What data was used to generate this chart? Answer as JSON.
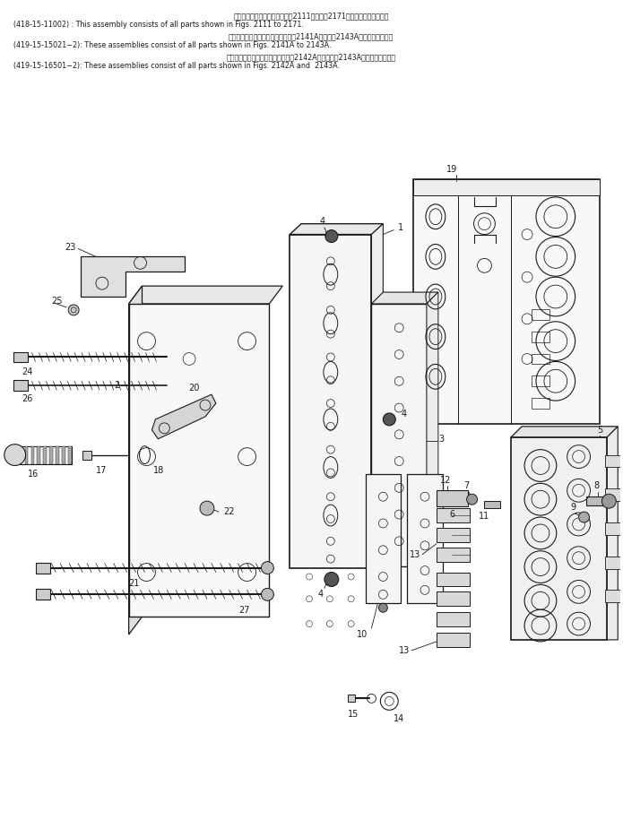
{
  "bg_color": "#ffffff",
  "line_color": "#1a1a1a",
  "fig_width": 6.95,
  "fig_height": 9.15,
  "header": {
    "line1_jp": "このアセンブリの構成部品は第2111図から第2171図の部品を含みます。",
    "line1_en": "(418-15-11002) : This assembly consists of all parts shown in Figs. 2111 to 2171.",
    "line2_jp": "これらのアセンブリの構成部品は第2141A図から第2143A図まで含みます。",
    "line2_en": "(419-15-15021−2): These assemblies consist of all parts shown in Figs. 2141A to 2143A.",
    "line3_jp": "これらのアセンブリの構成部品は第2142A図および第2143A図まで含みます。",
    "line3_en": "(419-15-16501−2): These assemblies consist of all parts shown in Figs. 2142A and  2143A."
  }
}
